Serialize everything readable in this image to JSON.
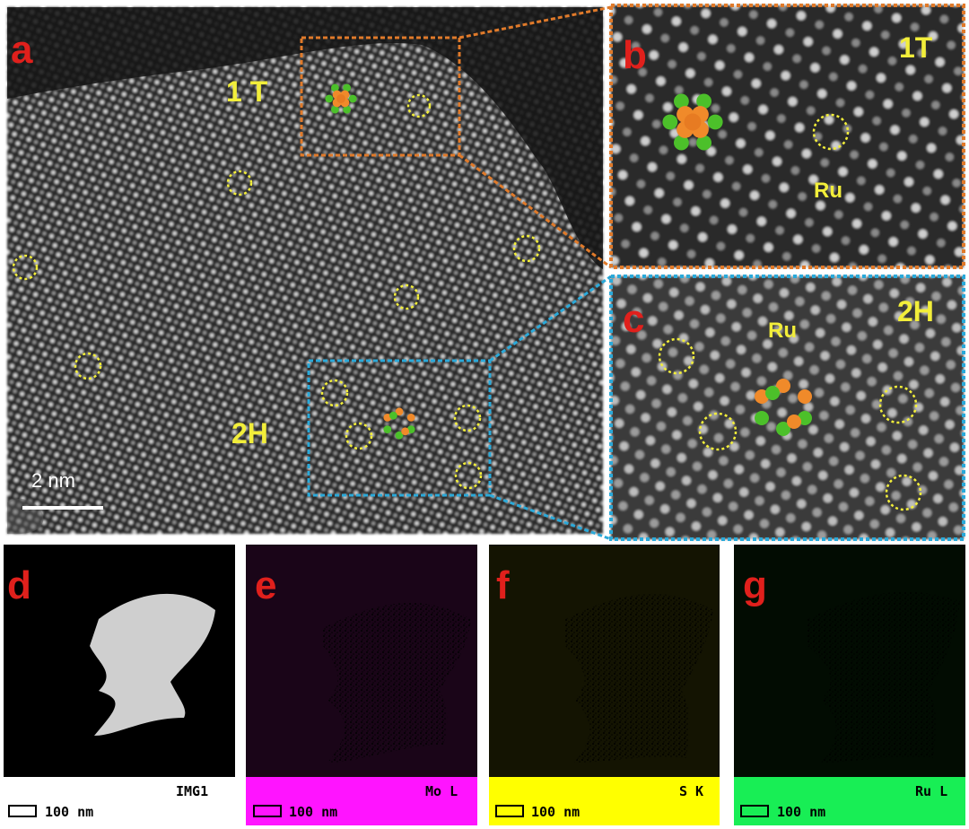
{
  "panels": {
    "a": {
      "label": "a",
      "phase_top": "1 T",
      "phase_bottom": "2H",
      "scale_bar": "2 nm"
    },
    "b": {
      "label": "b",
      "phase": "1T",
      "element": "Ru"
    },
    "c": {
      "label": "c",
      "phase": "2H",
      "element": "Ru"
    },
    "d": {
      "label": "d",
      "channel": "IMG1",
      "scale_bar": "100 nm"
    },
    "e": {
      "label": "e",
      "channel": "Mo L",
      "scale_bar": "100 nm"
    },
    "f": {
      "label": "f",
      "channel": "S K",
      "scale_bar": "100 nm"
    },
    "g": {
      "label": "g",
      "channel": "Ru L",
      "scale_bar": "100 nm"
    }
  }
}
